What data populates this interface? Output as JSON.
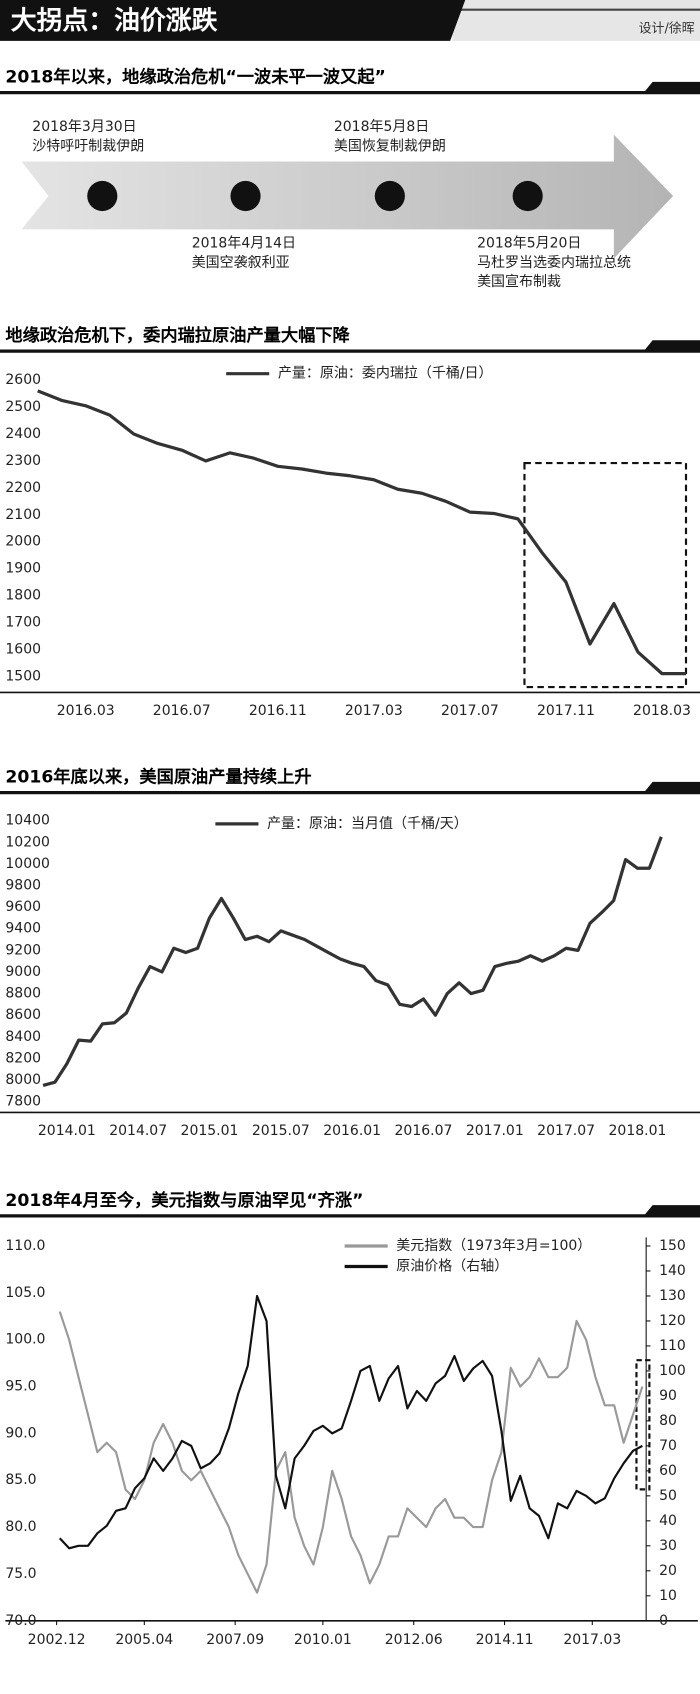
{
  "header": {
    "title": "大拐点：油价涨跌",
    "credit": "设计/徐晖"
  },
  "timeline": {
    "title": "2018年以来，地缘政治危机“一波未平一波又起”",
    "events": [
      {
        "date": "2018年3月30日",
        "lines": [
          "沙特呼吁制裁伊朗"
        ]
      },
      {
        "date": "2018年4月14日",
        "lines": [
          "美国空袭叙利亚"
        ]
      },
      {
        "date": "2018年5月8日",
        "lines": [
          "美国恢复制裁伊朗"
        ]
      },
      {
        "date": "2018年5月20日",
        "lines": [
          "马杜罗当选委内瑞拉总统",
          "美国宣布制裁"
        ]
      }
    ]
  },
  "chart_data": [
    {
      "type": "line",
      "title": "地缘政治危机下，委内瑞拉原油产量大幅下降",
      "categories": [
        null,
        null,
        "2016.03",
        null,
        null,
        null,
        "2016.07",
        null,
        null,
        null,
        "2016.11",
        null,
        null,
        null,
        "2017.03",
        null,
        null,
        null,
        "2017.07",
        null,
        null,
        null,
        "2017.11",
        null,
        null,
        null,
        "2018.03",
        null
      ],
      "series": [
        {
          "name": "产量：原油：委内瑞拉（千桶/日）",
          "color": "#333333",
          "values": [
            2560,
            2525,
            2505,
            2470,
            2400,
            2365,
            2340,
            2300,
            2330,
            2310,
            2280,
            2270,
            2255,
            2245,
            2230,
            2195,
            2180,
            2150,
            2110,
            2105,
            2085,
            1960,
            1850,
            1620,
            1770,
            1590,
            1510,
            1510
          ]
        }
      ],
      "ylim": [
        1440,
        2640
      ],
      "yticks": [
        1500,
        1600,
        1700,
        1800,
        1900,
        2000,
        2100,
        2200,
        2300,
        2400,
        2500,
        2600
      ],
      "grid": false,
      "legend": "top"
    },
    {
      "type": "line",
      "title": "2016年底以来，美国原油产量持续上升",
      "categories": [
        null,
        null,
        "2014.01",
        null,
        null,
        null,
        null,
        null,
        "2014.07",
        null,
        null,
        null,
        null,
        null,
        "2015.01",
        null,
        null,
        null,
        null,
        null,
        "2015.07",
        null,
        null,
        null,
        null,
        null,
        "2016.01",
        null,
        null,
        null,
        null,
        null,
        "2016.07",
        null,
        null,
        null,
        null,
        null,
        "2017.01",
        null,
        null,
        null,
        null,
        null,
        "2017.07",
        null,
        null,
        null,
        null,
        null,
        "2018.01",
        null,
        null
      ],
      "series": [
        {
          "name": "产量：原油：当月值（千桶/天）",
          "color": "#333333",
          "values": [
            7950,
            7980,
            8150,
            8370,
            8360,
            8520,
            8530,
            8620,
            8850,
            9050,
            9000,
            9220,
            9180,
            9220,
            9500,
            9680,
            9500,
            9300,
            9330,
            9280,
            9380,
            9340,
            9300,
            9240,
            9180,
            9120,
            9080,
            9050,
            8920,
            8880,
            8700,
            8680,
            8750,
            8600,
            8800,
            8900,
            8800,
            8830,
            9050,
            9080,
            9100,
            9150,
            9100,
            9150,
            9220,
            9200,
            9450,
            9550,
            9660,
            10040,
            9960,
            9960,
            10250
          ]
        }
      ],
      "ylim": [
        7700,
        10500
      ],
      "yticks": [
        7800,
        8000,
        8200,
        8400,
        8600,
        8800,
        9000,
        9200,
        9400,
        9600,
        9800,
        10000,
        10200,
        10400
      ],
      "grid": false,
      "legend": "top"
    },
    {
      "type": "line",
      "title": "2018年4月至今，美元指数与原油罕见“齐涨”",
      "x": [
        2003,
        2003.25,
        2003.5,
        2003.75,
        2004,
        2004.25,
        2004.5,
        2004.75,
        2005,
        2005.25,
        2005.5,
        2005.75,
        2006,
        2006.25,
        2006.5,
        2006.75,
        2007,
        2007.25,
        2007.5,
        2007.75,
        2008,
        2008.25,
        2008.5,
        2008.75,
        2009,
        2009.25,
        2009.5,
        2009.75,
        2010,
        2010.25,
        2010.5,
        2010.75,
        2011,
        2011.25,
        2011.5,
        2011.75,
        2012,
        2012.25,
        2012.5,
        2012.75,
        2013,
        2013.25,
        2013.5,
        2013.75,
        2014,
        2014.25,
        2014.5,
        2014.75,
        2015,
        2015.25,
        2015.5,
        2015.75,
        2016,
        2016.25,
        2016.5,
        2016.75,
        2017,
        2017.25,
        2017.5,
        2017.75,
        2018,
        2018.25,
        2018.5
      ],
      "xlim": [
        2002.7,
        2018.6
      ],
      "xticks": [
        {
          "value": 2002.917,
          "label": "2002.12"
        },
        {
          "value": 2005.25,
          "label": "2005.04"
        },
        {
          "value": 2007.667,
          "label": "2007.09"
        },
        {
          "value": 2010.0,
          "label": "2010.01"
        },
        {
          "value": 2012.417,
          "label": "2012.06"
        },
        {
          "value": 2014.833,
          "label": "2014.11"
        },
        {
          "value": 2017.167,
          "label": "2017.03"
        }
      ],
      "series": [
        {
          "name": "美元指数（1973年3月=100）",
          "color": "#999999",
          "values": [
            103,
            100,
            96,
            92,
            88,
            89,
            88,
            84,
            83,
            85,
            89,
            91,
            89,
            86,
            85,
            86,
            84,
            82,
            80,
            77,
            75,
            73,
            76,
            86,
            88,
            81,
            78,
            76,
            80,
            86,
            83,
            79,
            77,
            74,
            76,
            79,
            79,
            82,
            81,
            80,
            82,
            83,
            81,
            81,
            80,
            80,
            85,
            88,
            97,
            95,
            96,
            98,
            96,
            96,
            97,
            102,
            100,
            96,
            93,
            93,
            89,
            92,
            95
          ]
        },
        {
          "name": "原油价格（右轴）",
          "color": "#111111",
          "axis": "y2",
          "values": [
            33,
            29,
            30,
            30,
            35,
            38,
            44,
            45,
            53,
            57,
            65,
            60,
            65,
            72,
            70,
            61,
            63,
            67,
            77,
            91,
            102,
            130,
            120,
            58,
            45,
            65,
            70,
            76,
            78,
            75,
            77,
            88,
            100,
            102,
            88,
            97,
            102,
            85,
            92,
            88,
            95,
            98,
            106,
            96,
            101,
            104,
            98,
            76,
            48,
            58,
            45,
            42,
            33,
            47,
            45,
            52,
            50,
            47,
            49,
            57,
            63,
            68,
            70
          ]
        }
      ],
      "ylim": [
        70,
        110
      ],
      "yticks": [
        {
          "value": 70,
          "label": "70.0"
        },
        {
          "value": 75,
          "label": "75.0"
        },
        {
          "value": 80,
          "label": "80.0"
        },
        {
          "value": 85,
          "label": "85.0"
        },
        {
          "value": 90,
          "label": "90.0"
        },
        {
          "value": 95,
          "label": "95.0"
        },
        {
          "value": 100,
          "label": "100.0"
        },
        {
          "value": 105,
          "label": "105.0"
        },
        {
          "value": 110,
          "label": "110.0"
        }
      ],
      "y2lim": [
        0,
        150
      ],
      "y2ticks": [
        0,
        10,
        20,
        30,
        40,
        50,
        60,
        70,
        80,
        90,
        100,
        110,
        120,
        130,
        140,
        150
      ],
      "grid": false,
      "legend": "top"
    }
  ]
}
